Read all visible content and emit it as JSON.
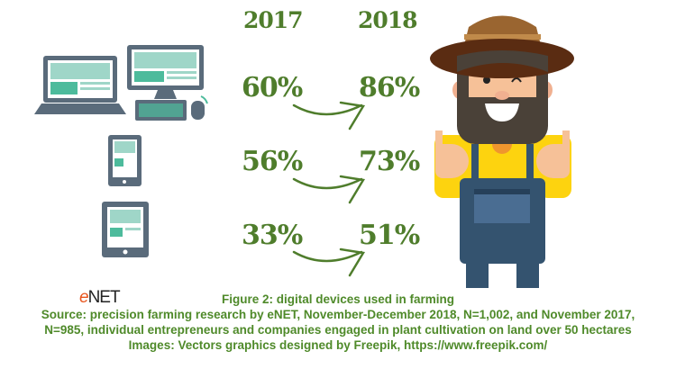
{
  "years": [
    "2017",
    "2018"
  ],
  "rows": [
    {
      "device": "computers",
      "icon": "laptop-desktop-icon",
      "v2017": "60%",
      "v2018": "86%"
    },
    {
      "device": "smartphones",
      "icon": "smartphone-icon",
      "v2017": "56%",
      "v2018": "73%"
    },
    {
      "device": "tablets",
      "icon": "tablet-icon",
      "v2017": "33%",
      "v2018": "51%"
    }
  ],
  "chart_data": {
    "type": "table",
    "categories": [
      "2017",
      "2018"
    ],
    "series": [
      {
        "values": [
          60,
          86
        ]
      },
      {
        "values": [
          56,
          73
        ]
      },
      {
        "values": [
          33,
          51
        ]
      }
    ]
  },
  "logo": {
    "text": "eNET"
  },
  "caption": {
    "title": "Figure 2: digital devices used in farming",
    "source_line1": "Source: precision farming research by eNET, November-December 2018, N=1,002, and November 2017,",
    "source_line2": "N=985, individual entrepreneurs and companies engaged in plant cultivation on land over 50 hectares",
    "images_line": "Images: Vectors graphics designed by Freepik, https://www.freepik.com/"
  },
  "colors": {
    "green": "#4f7d2c",
    "device": "#5a6b7b",
    "screen": "#9fd6c8",
    "accent": "#4dbb9c"
  }
}
